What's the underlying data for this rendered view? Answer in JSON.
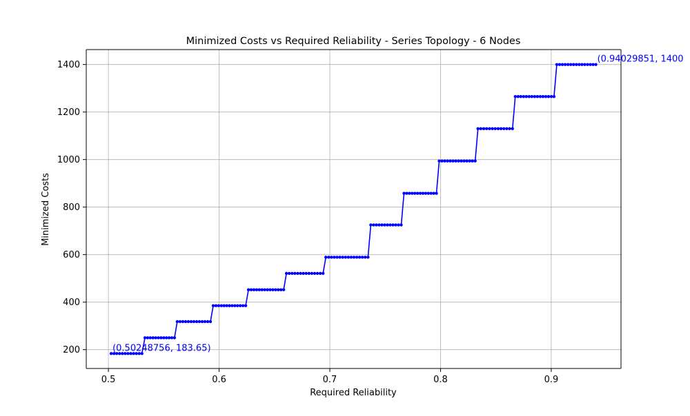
{
  "chart_data": {
    "type": "line",
    "title": "Minimized Costs vs Required Reliability - Series Topology - 6 Nodes",
    "xlabel": "Required Reliability",
    "ylabel": "Minimized Costs",
    "xlim": [
      0.48,
      0.963
    ],
    "ylim": [
      120.8,
      1462.8
    ],
    "xticks": [
      0.5,
      0.6,
      0.7,
      0.8,
      0.9
    ],
    "xtick_labels": [
      "0.5",
      "0.6",
      "0.7",
      "0.8",
      "0.9"
    ],
    "yticks": [
      200,
      400,
      600,
      800,
      1000,
      1200,
      1400
    ],
    "ytick_labels": [
      "200",
      "400",
      "600",
      "800",
      "1000",
      "1200",
      "1400"
    ],
    "grid": true,
    "line_color": "#0000ff",
    "marker": "dot",
    "steps": [
      {
        "x_start": 0.5025,
        "x_end": 0.5303,
        "y": 183.65
      },
      {
        "x_start": 0.533,
        "x_end": 0.5597,
        "y": 250
      },
      {
        "x_start": 0.5622,
        "x_end": 0.5922,
        "y": 318
      },
      {
        "x_start": 0.5947,
        "x_end": 0.624,
        "y": 385
      },
      {
        "x_start": 0.6265,
        "x_end": 0.6583,
        "y": 452
      },
      {
        "x_start": 0.6608,
        "x_end": 0.6939,
        "y": 521
      },
      {
        "x_start": 0.6964,
        "x_end": 0.7345,
        "y": 589
      },
      {
        "x_start": 0.737,
        "x_end": 0.7645,
        "y": 725
      },
      {
        "x_start": 0.767,
        "x_end": 0.7963,
        "y": 858
      },
      {
        "x_start": 0.7988,
        "x_end": 0.8313,
        "y": 994
      },
      {
        "x_start": 0.8338,
        "x_end": 0.865,
        "y": 1130
      },
      {
        "x_start": 0.8675,
        "x_end": 0.9025,
        "y": 1265
      },
      {
        "x_start": 0.905,
        "x_end": 0.9403,
        "y": 1400
      }
    ],
    "annotations": [
      {
        "text": "(0.50248756, 183.65)",
        "x": 0.50248756,
        "y": 183.65
      },
      {
        "text": "(0.94029851, 1400",
        "x": 0.94029851,
        "y": 1400
      }
    ]
  }
}
